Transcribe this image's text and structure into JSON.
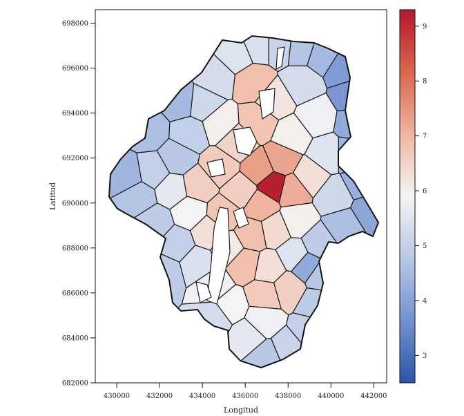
{
  "chart_data": {
    "type": "choropleth",
    "title": "",
    "xlabel": "Longitud",
    "ylabel": "Latitud",
    "xlim": [
      429000,
      442600
    ],
    "ylim": [
      682000,
      698600
    ],
    "x_ticks": [
      430000,
      432000,
      434000,
      436000,
      438000,
      440000,
      442000
    ],
    "y_ticks": [
      682000,
      684000,
      686000,
      688000,
      690000,
      692000,
      694000,
      696000,
      698000
    ],
    "x_tick_labels": [
      "430000",
      "432000",
      "434000",
      "436000",
      "438000",
      "440000",
      "442000"
    ],
    "y_tick_labels": [
      "682000",
      "684000",
      "686000",
      "688000",
      "690000",
      "692000",
      "694000",
      "696000",
      "698000"
    ],
    "colorbar": {
      "min": 2.5,
      "max": 9.3,
      "ticks": [
        3,
        4,
        5,
        6,
        7,
        8,
        9
      ],
      "tick_labels": [
        "3",
        "4",
        "5",
        "6",
        "7",
        "8",
        "9"
      ],
      "colors": [
        "#2b55a6",
        "#6f8fcf",
        "#b7c7e6",
        "#f4f4f4",
        "#f0b8a3",
        "#d9684f",
        "#b2182b"
      ]
    },
    "regions": [
      {
        "x": 432800,
        "y": 692000,
        "v": 4.8
      },
      {
        "x": 433400,
        "y": 693100,
        "v": 5.0
      },
      {
        "x": 434000,
        "y": 694400,
        "v": 5.2
      },
      {
        "x": 434600,
        "y": 695600,
        "v": 5.3
      },
      {
        "x": 435600,
        "y": 696600,
        "v": 5.5
      },
      {
        "x": 436600,
        "y": 697000,
        "v": 5.4
      },
      {
        "x": 437600,
        "y": 697000,
        "v": 5.1
      },
      {
        "x": 438600,
        "y": 696900,
        "v": 4.7
      },
      {
        "x": 439600,
        "y": 696600,
        "v": 4.5
      },
      {
        "x": 440600,
        "y": 696000,
        "v": 3.9
      },
      {
        "x": 441000,
        "y": 694800,
        "v": 3.8
      },
      {
        "x": 441100,
        "y": 693500,
        "v": 4.2
      },
      {
        "x": 440900,
        "y": 692200,
        "v": 4.4
      },
      {
        "x": 441400,
        "y": 690900,
        "v": 4.3
      },
      {
        "x": 441800,
        "y": 689700,
        "v": 4.1
      },
      {
        "x": 440600,
        "y": 689000,
        "v": 4.6
      },
      {
        "x": 439400,
        "y": 688200,
        "v": 4.9
      },
      {
        "x": 439500,
        "y": 686800,
        "v": 4.8
      },
      {
        "x": 439300,
        "y": 685500,
        "v": 4.9
      },
      {
        "x": 439000,
        "y": 684300,
        "v": 5.0
      },
      {
        "x": 438000,
        "y": 683500,
        "v": 5.1
      },
      {
        "x": 437000,
        "y": 683100,
        "v": 4.8
      },
      {
        "x": 436100,
        "y": 684100,
        "v": 5.6
      },
      {
        "x": 435300,
        "y": 685400,
        "v": 5.9
      },
      {
        "x": 434500,
        "y": 686300,
        "v": 5.8
      },
      {
        "x": 433800,
        "y": 687300,
        "v": 5.4
      },
      {
        "x": 432800,
        "y": 688200,
        "v": 5.0
      },
      {
        "x": 431800,
        "y": 689100,
        "v": 4.9
      },
      {
        "x": 431000,
        "y": 690300,
        "v": 4.7
      },
      {
        "x": 431700,
        "y": 691400,
        "v": 5.0
      },
      {
        "x": 433800,
        "y": 690800,
        "v": 6.6
      },
      {
        "x": 434800,
        "y": 691600,
        "v": 6.7
      },
      {
        "x": 435600,
        "y": 692700,
        "v": 6.5
      },
      {
        "x": 436600,
        "y": 693600,
        "v": 6.8
      },
      {
        "x": 437400,
        "y": 694600,
        "v": 6.2
      },
      {
        "x": 436400,
        "y": 695400,
        "v": 6.9
      },
      {
        "x": 438200,
        "y": 693000,
        "v": 6.0
      },
      {
        "x": 439300,
        "y": 693800,
        "v": 5.8
      },
      {
        "x": 439800,
        "y": 692200,
        "v": 5.5
      },
      {
        "x": 439000,
        "y": 691200,
        "v": 6.3
      },
      {
        "x": 438200,
        "y": 690600,
        "v": 7.2
      },
      {
        "x": 437300,
        "y": 690800,
        "v": 9.2
      },
      {
        "x": 436700,
        "y": 691500,
        "v": 7.4
      },
      {
        "x": 437700,
        "y": 691900,
        "v": 7.3
      },
      {
        "x": 436700,
        "y": 689900,
        "v": 7.1
      },
      {
        "x": 435800,
        "y": 690500,
        "v": 6.6
      },
      {
        "x": 435000,
        "y": 689500,
        "v": 6.8
      },
      {
        "x": 436300,
        "y": 688600,
        "v": 6.9
      },
      {
        "x": 437400,
        "y": 688800,
        "v": 6.4
      },
      {
        "x": 438400,
        "y": 689200,
        "v": 6.0
      },
      {
        "x": 436000,
        "y": 687300,
        "v": 6.9
      },
      {
        "x": 437100,
        "y": 687100,
        "v": 6.3
      },
      {
        "x": 438300,
        "y": 687700,
        "v": 5.5
      },
      {
        "x": 438000,
        "y": 686200,
        "v": 6.6
      },
      {
        "x": 436900,
        "y": 685900,
        "v": 6.7
      },
      {
        "x": 436800,
        "y": 684800,
        "v": 5.8
      },
      {
        "x": 434300,
        "y": 688700,
        "v": 6.3
      },
      {
        "x": 433400,
        "y": 689600,
        "v": 5.9
      },
      {
        "x": 432600,
        "y": 690600,
        "v": 5.6
      },
      {
        "x": 434800,
        "y": 693500,
        "v": 6.0
      },
      {
        "x": 435200,
        "y": 688000,
        "v": 6.1
      },
      {
        "x": 440200,
        "y": 690300,
        "v": 5.2
      },
      {
        "x": 438600,
        "y": 695300,
        "v": 5.3
      },
      {
        "x": 433000,
        "y": 694500,
        "v": 4.5
      },
      {
        "x": 431500,
        "y": 693200,
        "v": 4.6
      },
      {
        "x": 430500,
        "y": 691200,
        "v": 4.4
      },
      {
        "x": 432200,
        "y": 686900,
        "v": 4.9
      },
      {
        "x": 434600,
        "y": 684900,
        "v": 5.3
      },
      {
        "x": 438900,
        "y": 687200,
        "v": 4.2
      }
    ]
  }
}
